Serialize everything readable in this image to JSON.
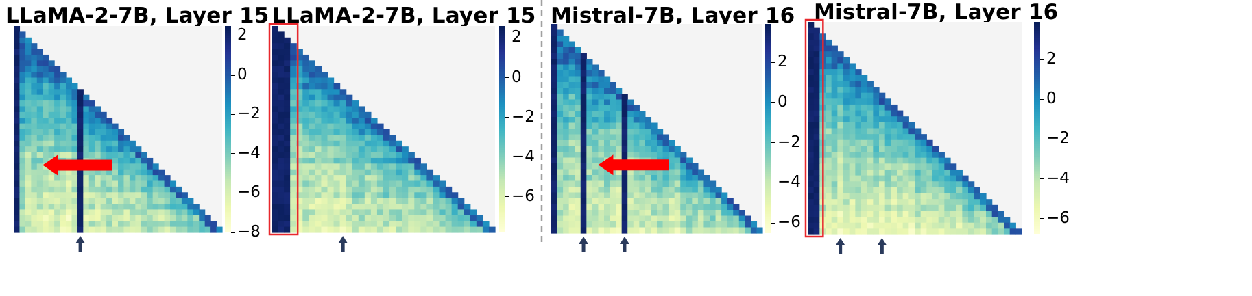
{
  "chart_data": [
    {
      "type": "heatmap",
      "title": "LLaMA-2-7B, Layer 15",
      "n_tokens": 36,
      "colormap": "YlGnBu",
      "mask": "upper-triangle",
      "colorbar": {
        "vmin": -8,
        "vmax": 2.5,
        "ticks": [
          2,
          0,
          -2,
          -4,
          -6,
          -8
        ],
        "tick_labels": [
          "2",
          "0",
          "−2",
          "−4",
          "−6",
          "−8"
        ]
      },
      "sink_columns": [
        0
      ],
      "highlight_columns": [
        11
      ],
      "arrow_columns": [
        11
      ],
      "arrow_annotation": {
        "from_column": 16,
        "to_column": 5,
        "row": 24
      },
      "highlight_box": null
    },
    {
      "type": "heatmap",
      "title": "LLaMA-2-7B, Layer 15",
      "n_tokens": 36,
      "colormap": "YlGnBu",
      "mask": "upper-triangle",
      "colorbar": {
        "vmin": -7.8,
        "vmax": 2.6,
        "ticks": [
          2,
          0,
          -2,
          -4,
          -6
        ],
        "tick_labels": [
          "2",
          "0",
          "−2",
          "−4",
          "−6"
        ]
      },
      "sink_columns": [
        0,
        1,
        2
      ],
      "highlight_columns": [],
      "arrow_columns": [
        11
      ],
      "arrow_annotation": null,
      "highlight_box": {
        "columns": [
          0,
          2
        ]
      }
    },
    {
      "type": "heatmap",
      "title": "Mistral-7B, Layer 16",
      "n_tokens": 36,
      "colormap": "YlGnBu",
      "mask": "upper-triangle",
      "colorbar": {
        "vmin": -6.5,
        "vmax": 3.9,
        "ticks": [
          2,
          0,
          -2,
          -4,
          -6
        ],
        "tick_labels": [
          "2",
          "0",
          "−2",
          "−4",
          "−6"
        ]
      },
      "sink_columns": [
        0
      ],
      "highlight_columns": [
        5,
        12
      ],
      "arrow_columns": [
        5,
        12
      ],
      "arrow_annotation": {
        "from_column": 19,
        "to_column": 8,
        "row": 24
      },
      "highlight_box": null
    },
    {
      "type": "heatmap",
      "title": "Mistral-7B, Layer 16",
      "n_tokens": 36,
      "colormap": "YlGnBu",
      "mask": "upper-triangle",
      "colorbar": {
        "vmin": -6.8,
        "vmax": 3.9,
        "ticks": [
          2,
          0,
          -2,
          -4,
          -6
        ],
        "tick_labels": [
          "2",
          "0",
          "−2",
          "−4",
          "−6"
        ]
      },
      "sink_columns": [
        0,
        1
      ],
      "highlight_columns": [],
      "arrow_columns": [
        5,
        12
      ],
      "arrow_annotation": null,
      "highlight_box": {
        "columns": [
          0,
          1
        ]
      }
    }
  ],
  "colors": {
    "masked": "#f4f4f4",
    "arrow_marker": "#2a3a5c",
    "annotation_arrow": "#ff0000",
    "highlight_box": "#e8282d",
    "divider": "#a0a0a0",
    "colormap_stops": [
      "#ffffd9",
      "#edf8b1",
      "#c7e9b4",
      "#7fcdbb",
      "#41b6c4",
      "#1d91c0",
      "#225ea8",
      "#253494",
      "#081d58"
    ]
  }
}
